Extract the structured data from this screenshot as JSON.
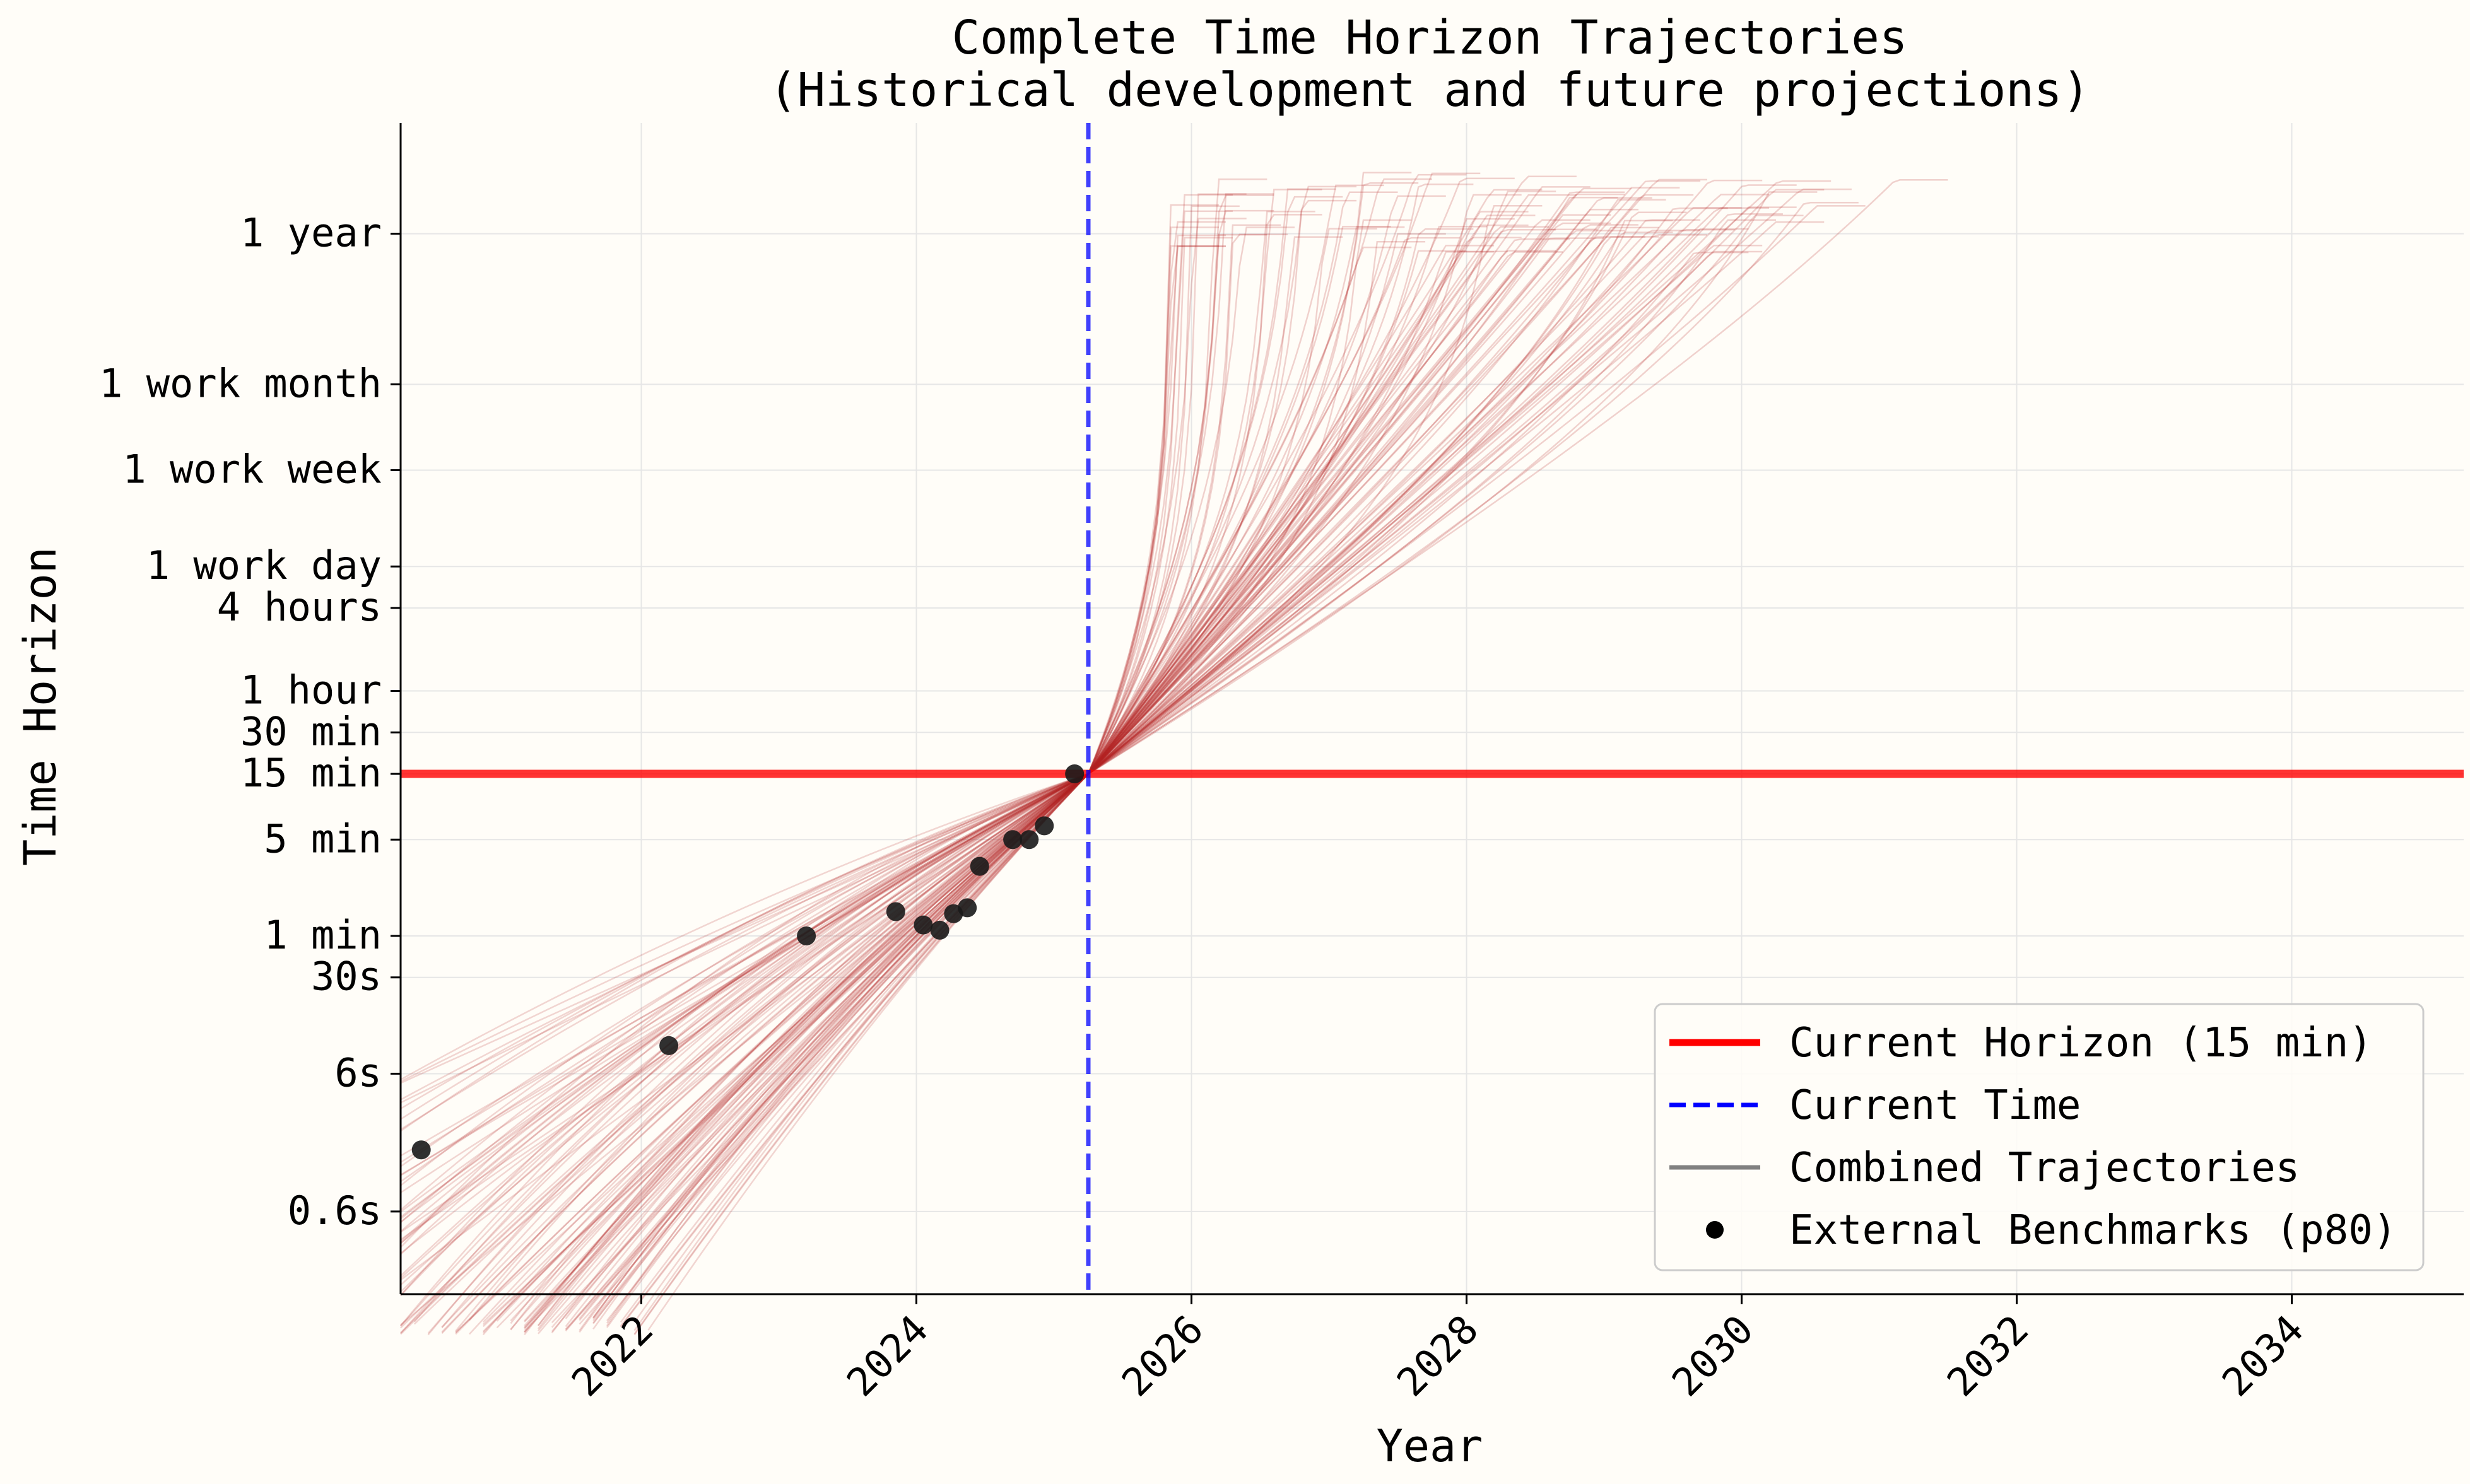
{
  "chart_data": {
    "type": "line",
    "title": "Complete Time Horizon Trajectories",
    "subtitle": "(Historical development and future projections)",
    "xlabel": "Year",
    "ylabel": "Time Horizon",
    "xlim": [
      2020.25,
      2035.25
    ],
    "ylim_log10_minutes": [
      -2.6,
      5.9
    ],
    "y_scale": "log",
    "grid": true,
    "legend_position": "lower-right",
    "x_ticks": [
      {
        "label": "2022",
        "value": 2022
      },
      {
        "label": "2024",
        "value": 2024
      },
      {
        "label": "2026",
        "value": 2026
      },
      {
        "label": "2028",
        "value": 2028
      },
      {
        "label": "2030",
        "value": 2030
      },
      {
        "label": "2032",
        "value": 2032
      },
      {
        "label": "2034",
        "value": 2034
      }
    ],
    "y_ticks": [
      {
        "label": "0.6s",
        "minutes": 0.01
      },
      {
        "label": "6s",
        "minutes": 0.1
      },
      {
        "label": "30s",
        "minutes": 0.5
      },
      {
        "label": "1 min",
        "minutes": 1
      },
      {
        "label": "5 min",
        "minutes": 5
      },
      {
        "label": "15 min",
        "minutes": 15
      },
      {
        "label": "30 min",
        "minutes": 30
      },
      {
        "label": "1 hour",
        "minutes": 60
      },
      {
        "label": "4 hours",
        "minutes": 240
      },
      {
        "label": "1 work day",
        "minutes": 480
      },
      {
        "label": "1 work week",
        "minutes": 2400
      },
      {
        "label": "1 work month",
        "minutes": 10080
      },
      {
        "label": "1 year",
        "minutes": 124800
      }
    ],
    "current_horizon": {
      "label": "Current Horizon (15 min)",
      "minutes": 15,
      "color": "#ff0000"
    },
    "current_time": {
      "label": "Current Time",
      "year": 2025.25,
      "color": "#0000ff"
    },
    "trajectories": {
      "label": "Combined Trajectories",
      "color": "#b22222",
      "legend_color": "#808080",
      "anchor": {
        "year": 2025.25,
        "minutes": 15
      },
      "count": 120
    },
    "benchmarks": {
      "label": "External Benchmarks (p80)",
      "color": "#1a1a1a",
      "points": [
        {
          "year": 2020.4,
          "minutes": 0.028
        },
        {
          "year": 2022.2,
          "minutes": 0.16
        },
        {
          "year": 2023.2,
          "minutes": 1.0
        },
        {
          "year": 2023.85,
          "minutes": 1.5
        },
        {
          "year": 2024.05,
          "minutes": 1.2
        },
        {
          "year": 2024.17,
          "minutes": 1.1
        },
        {
          "year": 2024.27,
          "minutes": 1.45
        },
        {
          "year": 2024.37,
          "minutes": 1.6
        },
        {
          "year": 2024.46,
          "minutes": 3.2
        },
        {
          "year": 2024.7,
          "minutes": 5.0
        },
        {
          "year": 2024.82,
          "minutes": 5.0
        },
        {
          "year": 2024.93,
          "minutes": 6.3
        },
        {
          "year": 2025.15,
          "minutes": 15
        }
      ]
    }
  }
}
